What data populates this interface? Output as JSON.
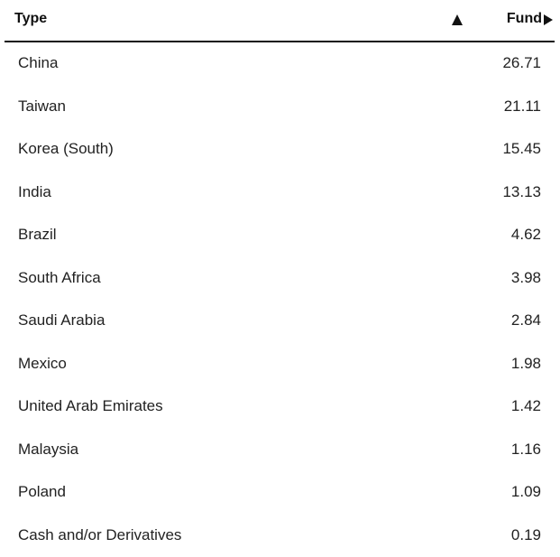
{
  "header": {
    "type": "Type",
    "fund": "Fund"
  },
  "table": {
    "rows": [
      [
        "China",
        26.71
      ],
      [
        "Taiwan",
        21.11
      ],
      [
        "Korea (South)",
        15.45
      ],
      [
        "India",
        13.13
      ],
      [
        "Brazil",
        4.62
      ],
      [
        "South Africa",
        3.98
      ],
      [
        "Saudi Arabia",
        2.84
      ],
      [
        "Mexico",
        1.98
      ],
      [
        "United Arab Emirates",
        1.42
      ],
      [
        "Malaysia",
        1.16
      ],
      [
        "Poland",
        1.09
      ],
      [
        "Cash and/or Derivatives",
        0.19
      ]
    ]
  }
}
